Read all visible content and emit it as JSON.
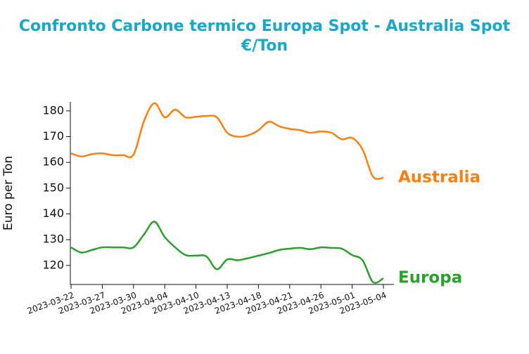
{
  "chart_data": {
    "type": "line",
    "title": "Confronto Carbone termico Europa Spot - Australia Spot",
    "subtitle": "€/Ton",
    "y_label": "Euro per Ton",
    "categories": [
      "2023-03-22",
      null,
      null,
      "2023-03-27",
      null,
      null,
      "2023-03-30",
      null,
      null,
      "2023-04-04",
      null,
      null,
      "2023-04-10",
      null,
      null,
      "2023-04-13",
      null,
      null,
      "2023-04-18",
      null,
      null,
      "2023-04-21",
      null,
      null,
      "2023-04-26",
      null,
      null,
      "2023-05-01",
      null,
      null,
      "2023-05-04"
    ],
    "series": [
      {
        "name": "Australia",
        "color": "#ff7f0e",
        "values": [
          163.5,
          162.3,
          163.2,
          163.5,
          162.8,
          162.8,
          163,
          176,
          183,
          177.5,
          180.5,
          177.5,
          177.7,
          178,
          177.5,
          171.5,
          170,
          170.5,
          172.5,
          175.8,
          174,
          173,
          172.5,
          171.5,
          172,
          171.5,
          169,
          169.5,
          165,
          154.5,
          154
        ]
      },
      {
        "name": "Europa",
        "color": "#2ca02c",
        "values": [
          127,
          125,
          126,
          127,
          127,
          127,
          127,
          132,
          137,
          131,
          127,
          124,
          123.8,
          123.5,
          118.5,
          122.3,
          122,
          122.8,
          123.8,
          124.8,
          126,
          126.5,
          126.8,
          126.3,
          127,
          126.8,
          126.5,
          124,
          122,
          113.5,
          115
        ]
      }
    ],
    "ylim": [
      112.6,
      183.5
    ],
    "yticks": [
      120,
      130,
      140,
      150,
      160,
      170,
      180
    ]
  }
}
